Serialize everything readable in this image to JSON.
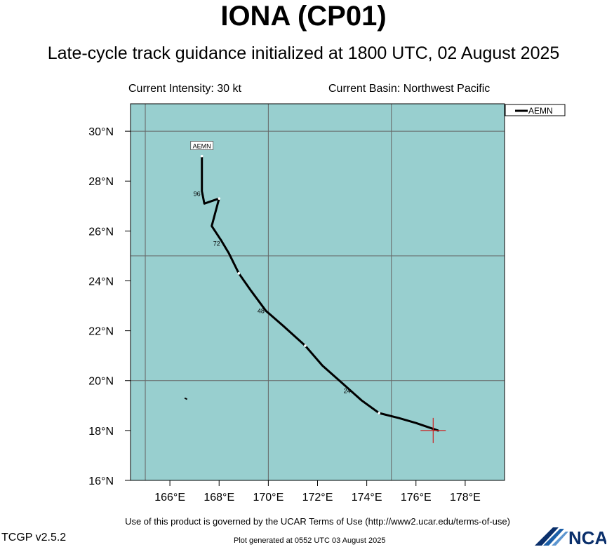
{
  "title": "IONA (CP01)",
  "subtitle": "Late-cycle track guidance initialized at 1800 UTC, 02 August 2025",
  "info": {
    "intensity": "Current Intensity: 30 kt",
    "basin": "Current Basin: Northwest Pacific"
  },
  "footer": {
    "terms": "Use of this product is governed by the UCAR Terms of Use (http://www2.ucar.edu/terms-of-use)",
    "version": "TCGP v2.5.2",
    "generated": "Plot generated at 0552 UTC   03 August 2025",
    "logo_text": "NCAR"
  },
  "colors": {
    "ocean": "#98cfcf",
    "track": "#000000",
    "grid": "#666666",
    "current_position": "#cc2222"
  },
  "chart_data": {
    "type": "line",
    "x_axis": {
      "units": "degrees E",
      "range": [
        164.4,
        179.6
      ],
      "ticks": [
        166,
        168,
        170,
        172,
        174,
        176,
        178
      ],
      "tick_labels": [
        "166°E",
        "168°E",
        "170°E",
        "172°E",
        "174°E",
        "176°E",
        "178°E"
      ]
    },
    "y_axis": {
      "units": "degrees N",
      "range": [
        16,
        31.1
      ],
      "ticks": [
        16,
        18,
        20,
        22,
        24,
        26,
        28,
        30
      ],
      "tick_labels": [
        "16°N",
        "18°N",
        "20°N",
        "22°N",
        "24°N",
        "26°N",
        "28°N",
        "30°N"
      ]
    },
    "grid_lon": [
      165,
      170,
      175
    ],
    "grid_lat": [
      20,
      25,
      30
    ],
    "legend": {
      "position": "top-right",
      "entries": [
        "AEMN"
      ]
    },
    "current_position": {
      "lon": 176.7,
      "lat": 18.0
    },
    "series": [
      {
        "name": "AEMN",
        "points": [
          {
            "lon": 176.9,
            "lat": 18.0
          },
          {
            "lon": 176.0,
            "lat": 18.3
          },
          {
            "lon": 175.3,
            "lat": 18.5
          },
          {
            "lon": 174.5,
            "lat": 18.7
          },
          {
            "lon": 173.8,
            "lat": 19.2
          },
          {
            "lon": 173.0,
            "lat": 19.9
          },
          {
            "lon": 172.2,
            "lat": 20.6
          },
          {
            "lon": 171.5,
            "lat": 21.4
          },
          {
            "lon": 170.6,
            "lat": 22.2
          },
          {
            "lon": 169.9,
            "lat": 22.8
          },
          {
            "lon": 169.3,
            "lat": 23.6
          },
          {
            "lon": 168.8,
            "lat": 24.3
          },
          {
            "lon": 168.4,
            "lat": 25.1
          },
          {
            "lon": 168.1,
            "lat": 25.6
          },
          {
            "lon": 167.7,
            "lat": 26.2
          },
          {
            "lon": 168.0,
            "lat": 27.3
          },
          {
            "lon": 167.4,
            "lat": 27.1
          },
          {
            "lon": 167.3,
            "lat": 27.6
          },
          {
            "lon": 167.3,
            "lat": 29.0
          }
        ],
        "dots": [
          {
            "lon": 174.5,
            "lat": 18.7
          },
          {
            "lon": 171.5,
            "lat": 21.4
          },
          {
            "lon": 168.8,
            "lat": 24.3
          },
          {
            "lon": 168.0,
            "lat": 27.3
          },
          {
            "lon": 167.3,
            "lat": 29.0
          }
        ],
        "hour_labels": [
          {
            "text": "24",
            "lon": 173.2,
            "lat": 19.5
          },
          {
            "text": "48",
            "lon": 169.7,
            "lat": 22.7
          },
          {
            "text": "72",
            "lon": 167.9,
            "lat": 25.4
          },
          {
            "text": "96",
            "lon": 167.1,
            "lat": 27.4
          }
        ],
        "end_label": {
          "text": "AEMN",
          "lon": 167.3,
          "lat": 29.4
        }
      }
    ],
    "stray_marks": [
      {
        "lon1": 166.6,
        "lat1": 19.3,
        "lon2": 166.7,
        "lat2": 19.25
      }
    ]
  }
}
